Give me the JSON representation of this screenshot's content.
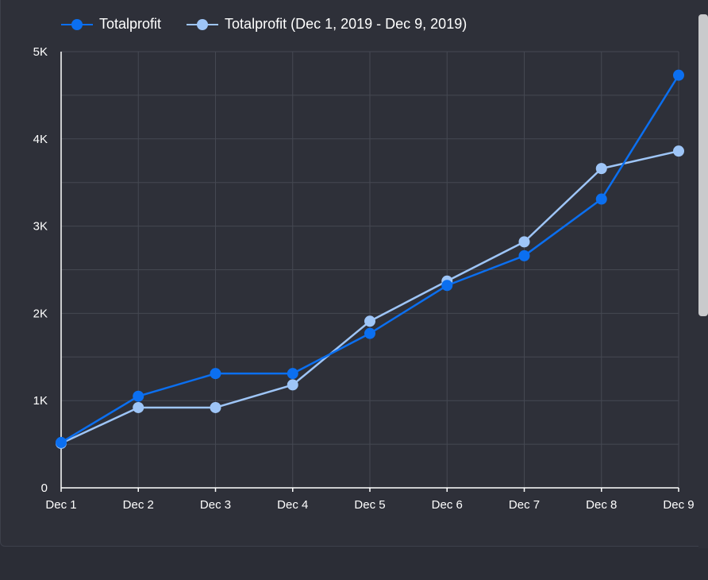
{
  "legend": {
    "series1_label": "Totalprofit",
    "series2_label": "Totalprofit (Dec 1, 2019 - Dec 9, 2019)"
  },
  "colors": {
    "series1": "#0b6ff0",
    "series2": "#9ec5f7",
    "grid": "#454852",
    "axis": "#ffffff",
    "background": "#2e3039"
  },
  "chart_data": {
    "type": "line",
    "categories": [
      "Dec 1",
      "Dec 2",
      "Dec 3",
      "Dec 4",
      "Dec 5",
      "Dec 6",
      "Dec 7",
      "Dec 8",
      "Dec 9"
    ],
    "series": [
      {
        "name": "Totalprofit",
        "values": [
          520,
          1050,
          1310,
          1310,
          1770,
          2320,
          2660,
          3310,
          4730
        ]
      },
      {
        "name": "Totalprofit (Dec 1, 2019 - Dec 9, 2019)",
        "values": [
          510,
          920,
          920,
          1180,
          1910,
          2370,
          2820,
          3660,
          3860
        ]
      }
    ],
    "yticks": [
      "0",
      "1K",
      "2K",
      "3K",
      "4K",
      "5K"
    ],
    "ylim": [
      0,
      5000
    ],
    "grid": true,
    "legend_position": "top-left"
  }
}
